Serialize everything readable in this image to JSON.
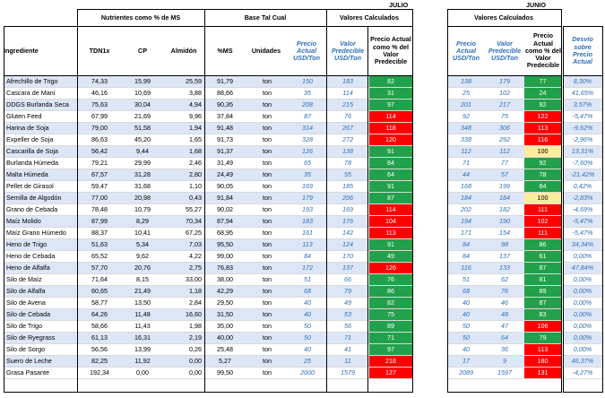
{
  "labels": {
    "julio": "JULIO",
    "junio": "JUNIO"
  },
  "headers": {
    "nutrientes": "Nutrientes como % de MS",
    "base_tal_cual": "Base Tal Cual",
    "valores_calculados_julio": "Valores Calculados",
    "valores_calculados_junio": "Valores Calculados",
    "ingrediente": "Ingrediente",
    "tdn": "TDN1x",
    "cp": "CP",
    "almidon": "Almidón",
    "ms": "%MS",
    "unidades": "Unidades",
    "precio_actual": "Precio Actual USD/Ton",
    "valor_predecible": "Valor Predecible USD/Ton",
    "precio_pct": "Precio Actual como % del Valor Predecible",
    "junio_precio": "Precio Actual USD/Ton",
    "junio_valor": "Valor Predecible USD/Ton",
    "junio_pct": "Precio Actual como % del Valor Predecible",
    "desvio": "Desvío sobre Precio Actual"
  },
  "rows": [
    {
      "name": "Afrechillo de Trigo",
      "tdn": "74,33",
      "cp": "15,99",
      "alm": "25,59",
      "ms": "91,79",
      "u": "ton",
      "pa": "150",
      "vp": "183",
      "pct": "82",
      "pc": "green",
      "jpa": "138",
      "jvp": "179",
      "jpct": "77",
      "jc": "green",
      "d": "8,30%"
    },
    {
      "name": "Cascara de Maní",
      "tdn": "46,16",
      "cp": "10,69",
      "alm": "3,88",
      "ms": "88,66",
      "u": "ton",
      "pa": "35",
      "vp": "114",
      "pct": "31",
      "pc": "green",
      "jpa": "25",
      "jvp": "102",
      "jpct": "24",
      "jc": "green",
      "d": "41,65%"
    },
    {
      "name": "DDGS Burlanda Seca",
      "tdn": "75,63",
      "cp": "30,04",
      "alm": "4,94",
      "ms": "90,35",
      "u": "ton",
      "pa": "208",
      "vp": "215",
      "pct": "97",
      "pc": "green",
      "jpa": "201",
      "jvp": "217",
      "jpct": "92",
      "jc": "green",
      "d": "3,57%"
    },
    {
      "name": "Gluten Feed",
      "tdn": "67,99",
      "cp": "21,69",
      "alm": "9,96",
      "ms": "37,84",
      "u": "ton",
      "pa": "87",
      "vp": "76",
      "pct": "114",
      "pc": "red",
      "jpa": "92",
      "jvp": "75",
      "jpct": "122",
      "jc": "red",
      "d": "-5,47%"
    },
    {
      "name": "Harina de Soja",
      "tdn": "79,00",
      "cp": "51,58",
      "alm": "1,94",
      "ms": "91,48",
      "u": "ton",
      "pa": "314",
      "vp": "267",
      "pct": "118",
      "pc": "red",
      "jpa": "348",
      "jvp": "306",
      "jpct": "113",
      "jc": "red",
      "d": "-9,62%"
    },
    {
      "name": "Expeller de Soja",
      "tdn": "86,63",
      "cp": "45,20",
      "alm": "1,65",
      "ms": "91,73",
      "u": "ton",
      "pa": "328",
      "vp": "272",
      "pct": "120",
      "pc": "red",
      "jpa": "338",
      "jvp": "292",
      "jpct": "116",
      "jc": "red",
      "d": "-2,96%"
    },
    {
      "name": "Cascarilla de Soja",
      "tdn": "56,42",
      "cp": "9,44",
      "alm": "1,68",
      "ms": "91,37",
      "u": "ton",
      "pa": "126",
      "vp": "138",
      "pct": "91",
      "pc": "green",
      "jpa": "112",
      "jvp": "112",
      "jpct": "100",
      "jc": "yellow",
      "d": "13,31%"
    },
    {
      "name": "Burlanda Húmeda",
      "tdn": "79,21",
      "cp": "29,99",
      "alm": "2,46",
      "ms": "31,49",
      "u": "ton",
      "pa": "65",
      "vp": "78",
      "pct": "84",
      "pc": "green",
      "jpa": "71",
      "jvp": "77",
      "jpct": "92",
      "jc": "green",
      "d": "-7,60%"
    },
    {
      "name": "Malta Húmeda",
      "tdn": "67,57",
      "cp": "31,28",
      "alm": "2,80",
      "ms": "24,49",
      "u": "ton",
      "pa": "35",
      "vp": "55",
      "pct": "64",
      "pc": "green",
      "jpa": "44",
      "jvp": "57",
      "jpct": "78",
      "jc": "green",
      "d": "-21,42%"
    },
    {
      "name": "Pellet de Girasol",
      "tdn": "59,47",
      "cp": "31,68",
      "alm": "1,10",
      "ms": "90,05",
      "u": "ton",
      "pa": "169",
      "vp": "185",
      "pct": "91",
      "pc": "green",
      "jpa": "168",
      "jvp": "199",
      "jpct": "84",
      "jc": "green",
      "d": "0,42%"
    },
    {
      "name": "Semilla de Algodón",
      "tdn": "77,00",
      "cp": "20,98",
      "alm": "0,43",
      "ms": "91,84",
      "u": "ton",
      "pa": "179",
      "vp": "206",
      "pct": "87",
      "pc": "green",
      "jpa": "184",
      "jvp": "184",
      "jpct": "100",
      "jc": "yellow",
      "d": "-2,83%"
    },
    {
      "name": "Grano de Cebada",
      "tdn": "78,48",
      "cp": "10,79",
      "alm": "55,27",
      "ms": "90,02",
      "u": "ton",
      "pa": "193",
      "vp": "169",
      "pct": "114",
      "pc": "red",
      "jpa": "202",
      "jvp": "182",
      "jpct": "111",
      "jc": "red",
      "d": "-4,69%"
    },
    {
      "name": "Maíz Molido",
      "tdn": "87,99",
      "cp": "8,29",
      "alm": "70,34",
      "ms": "87,94",
      "u": "ton",
      "pa": "183",
      "vp": "176",
      "pct": "104",
      "pc": "red",
      "jpa": "194",
      "jvp": "190",
      "jpct": "102",
      "jc": "red",
      "d": "-5,47%"
    },
    {
      "name": "Maíz Grano Húmedo",
      "tdn": "88,37",
      "cp": "10,41",
      "alm": "67,25",
      "ms": "68,95",
      "u": "ton",
      "pa": "161",
      "vp": "142",
      "pct": "113",
      "pc": "red",
      "jpa": "171",
      "jvp": "154",
      "jpct": "111",
      "jc": "red",
      "d": "-5,47%"
    },
    {
      "name": "Heno de Trigo",
      "tdn": "51,63",
      "cp": "5,34",
      "alm": "7,03",
      "ms": "95,50",
      "u": "ton",
      "pa": "113",
      "vp": "124",
      "pct": "91",
      "pc": "green",
      "jpa": "84",
      "jvp": "98",
      "jpct": "86",
      "jc": "green",
      "d": "34,34%"
    },
    {
      "name": "Heno de Cebada",
      "tdn": "65,52",
      "cp": "9,62",
      "alm": "4,22",
      "ms": "99,00",
      "u": "ton",
      "pa": "84",
      "vp": "170",
      "pct": "49",
      "pc": "green",
      "jpa": "84",
      "jvp": "137",
      "jpct": "61",
      "jc": "green",
      "d": "0,00%"
    },
    {
      "name": "Heno de Alfalfa",
      "tdn": "57,70",
      "cp": "20,76",
      "alm": "2,75",
      "ms": "76,83",
      "u": "ton",
      "pa": "172",
      "vp": "137",
      "pct": "126",
      "pc": "red",
      "jpa": "116",
      "jvp": "133",
      "jpct": "87",
      "jc": "green",
      "d": "47,84%"
    },
    {
      "name": "Silo de Maíz",
      "tdn": "71,64",
      "cp": "8,15",
      "alm": "33,00",
      "ms": "38,00",
      "u": "ton",
      "pa": "51",
      "vp": "66",
      "pct": "76",
      "pc": "green",
      "jpa": "51",
      "jvp": "62",
      "jpct": "81",
      "jc": "green",
      "d": "0,00%"
    },
    {
      "name": "Silo de Alfalfa",
      "tdn": "60,65",
      "cp": "21,49",
      "alm": "1,18",
      "ms": "42,29",
      "u": "ton",
      "pa": "68",
      "vp": "79",
      "pct": "86",
      "pc": "green",
      "jpa": "68",
      "jvp": "76",
      "jpct": "89",
      "jc": "green",
      "d": "0,00%"
    },
    {
      "name": "Silo de Avena",
      "tdn": "58,77",
      "cp": "13,50",
      "alm": "2,84",
      "ms": "29,50",
      "u": "ton",
      "pa": "40",
      "vp": "49",
      "pct": "82",
      "pc": "green",
      "jpa": "40",
      "jvp": "46",
      "jpct": "87",
      "jc": "green",
      "d": "0,00%"
    },
    {
      "name": "Silo de Cebada",
      "tdn": "64,26",
      "cp": "11,48",
      "alm": "16,60",
      "ms": "31,50",
      "u": "ton",
      "pa": "40",
      "vp": "53",
      "pct": "75",
      "pc": "green",
      "jpa": "40",
      "jvp": "48",
      "jpct": "83",
      "jc": "green",
      "d": "0,00%"
    },
    {
      "name": "Silo de Trigo",
      "tdn": "58,66",
      "cp": "11,43",
      "alm": "1,98",
      "ms": "35,00",
      "u": "ton",
      "pa": "50",
      "vp": "56",
      "pct": "89",
      "pc": "green",
      "jpa": "50",
      "jvp": "47",
      "jpct": "106",
      "jc": "red",
      "d": "0,00%"
    },
    {
      "name": "Silo de Ryegrass",
      "tdn": "61,13",
      "cp": "16,31",
      "alm": "2,19",
      "ms": "40,00",
      "u": "ton",
      "pa": "50",
      "vp": "71",
      "pct": "71",
      "pc": "green",
      "jpa": "50",
      "jvp": "64",
      "jpct": "79",
      "jc": "green",
      "d": "0,00%"
    },
    {
      "name": "Silo de Sorgo",
      "tdn": "56,56",
      "cp": "13,99",
      "alm": "0,26",
      "ms": "25,48",
      "u": "ton",
      "pa": "40",
      "vp": "41",
      "pct": "97",
      "pc": "green",
      "jpa": "40",
      "jvp": "36",
      "jpct": "113",
      "jc": "red",
      "d": "0,00%"
    },
    {
      "name": "Suero de Leche",
      "tdn": "82,25",
      "cp": "11,92",
      "alm": "0,00",
      "ms": "5,27",
      "u": "ton",
      "pa": "25",
      "vp": "11",
      "pct": "218",
      "pc": "red",
      "jpa": "17",
      "jvp": "9",
      "jpct": "180",
      "jc": "red",
      "d": "46,37%"
    },
    {
      "name": "Grasa Pasante",
      "tdn": "192,34",
      "cp": "0,00",
      "alm": "0,00",
      "ms": "99,50",
      "u": "ton",
      "pa": "2000",
      "vp": "1579",
      "pct": "127",
      "pc": "red",
      "jpa": "2089",
      "jvp": "1597",
      "jpct": "131",
      "jc": "red",
      "d": "-4,27%"
    }
  ]
}
